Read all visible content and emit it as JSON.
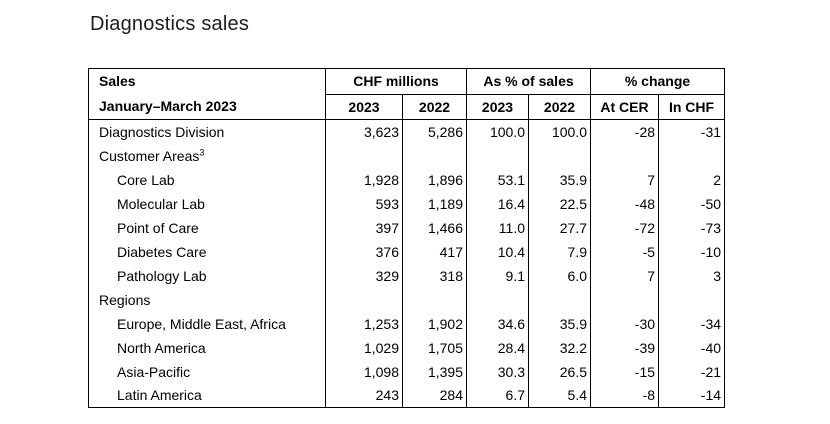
{
  "page_title": "Diagnostics sales",
  "table": {
    "header": {
      "title_line1": "Sales",
      "title_line2": "January–March 2023",
      "groups": [
        {
          "label": "CHF millions"
        },
        {
          "label": "As % of sales"
        },
        {
          "label": "% change"
        }
      ],
      "subheaders": [
        "2023",
        "2022",
        "2023",
        "2022",
        "At CER",
        "In CHF"
      ]
    },
    "rows": [
      {
        "label": "Diagnostics Division",
        "sup": "",
        "indent": 0,
        "values": [
          "3,623",
          "5,286",
          "100.0",
          "100.0",
          "-28",
          "-31"
        ]
      },
      {
        "label": "Customer Areas",
        "sup": "3",
        "indent": 0,
        "values": [
          "",
          "",
          "",
          "",
          "",
          ""
        ]
      },
      {
        "label": "Core Lab",
        "sup": "",
        "indent": 1,
        "values": [
          "1,928",
          "1,896",
          "53.1",
          "35.9",
          "7",
          "2"
        ]
      },
      {
        "label": "Molecular Lab",
        "sup": "",
        "indent": 1,
        "values": [
          "593",
          "1,189",
          "16.4",
          "22.5",
          "-48",
          "-50"
        ]
      },
      {
        "label": "Point of Care",
        "sup": "",
        "indent": 1,
        "values": [
          "397",
          "1,466",
          "11.0",
          "27.7",
          "-72",
          "-73"
        ]
      },
      {
        "label": "Diabetes Care",
        "sup": "",
        "indent": 1,
        "values": [
          "376",
          "417",
          "10.4",
          "7.9",
          "-5",
          "-10"
        ]
      },
      {
        "label": "Pathology Lab",
        "sup": "",
        "indent": 1,
        "values": [
          "329",
          "318",
          "9.1",
          "6.0",
          "7",
          "3"
        ]
      },
      {
        "label": "Regions",
        "sup": "",
        "indent": 0,
        "values": [
          "",
          "",
          "",
          "",
          "",
          ""
        ]
      },
      {
        "label": "Europe, Middle East, Africa",
        "sup": "",
        "indent": 1,
        "values": [
          "1,253",
          "1,902",
          "34.6",
          "35.9",
          "-30",
          "-34"
        ]
      },
      {
        "label": "North America",
        "sup": "",
        "indent": 1,
        "values": [
          "1,029",
          "1,705",
          "28.4",
          "32.2",
          "-39",
          "-40"
        ]
      },
      {
        "label": "Asia-Pacific",
        "sup": "",
        "indent": 1,
        "values": [
          "1,098",
          "1,395",
          "30.3",
          "26.5",
          "-15",
          "-21"
        ]
      },
      {
        "label": "Latin America",
        "sup": "",
        "indent": 1,
        "values": [
          "243",
          "284",
          "6.7",
          "5.4",
          "-8",
          "-14"
        ]
      }
    ]
  }
}
